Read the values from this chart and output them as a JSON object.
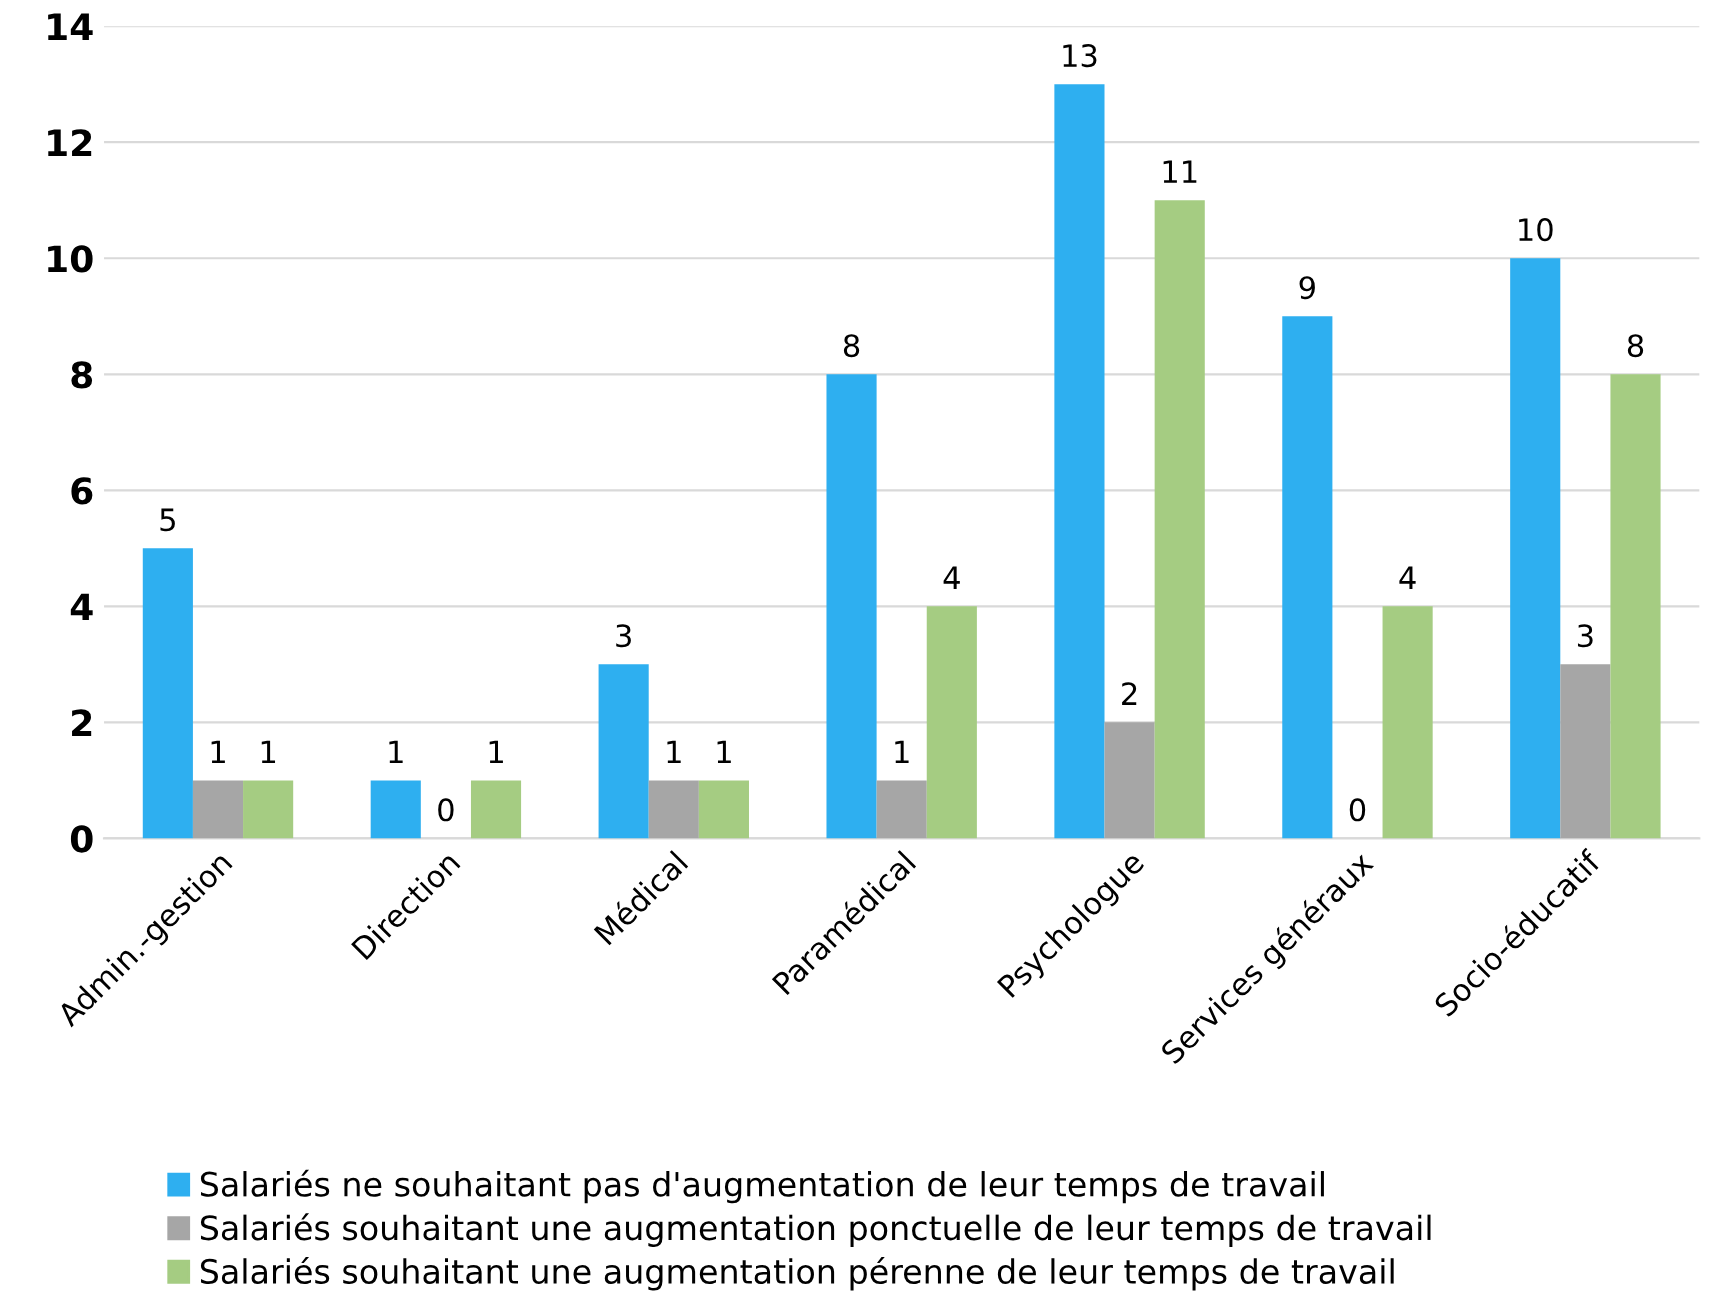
{
  "chart_data": {
    "type": "bar",
    "categories": [
      "Admin.-gestion",
      "Direction",
      "Médical",
      "Paramédical",
      "Psychologue",
      "Services généraux",
      "Socio-éducatif"
    ],
    "series": [
      {
        "name": "Salariés ne souhaitant pas d'augmentation de leur temps de travail",
        "color": "#2eaff0",
        "values": [
          5,
          1,
          3,
          8,
          13,
          9,
          10
        ]
      },
      {
        "name": "Salariés souhaitant une augmentation ponctuelle de leur temps de travail",
        "color": "#a6a6a6",
        "values": [
          1,
          0,
          1,
          1,
          2,
          0,
          3
        ]
      },
      {
        "name": "Salariés souhaitant une augmentation pérenne de leur temps de travail",
        "color": "#a5cc82",
        "values": [
          1,
          1,
          1,
          4,
          11,
          4,
          8
        ]
      }
    ],
    "ylim": [
      0,
      14
    ],
    "yticks": [
      0,
      2,
      4,
      6,
      8,
      10,
      12,
      14
    ],
    "grid": "y",
    "legend": "bottom",
    "data_labels": true
  }
}
